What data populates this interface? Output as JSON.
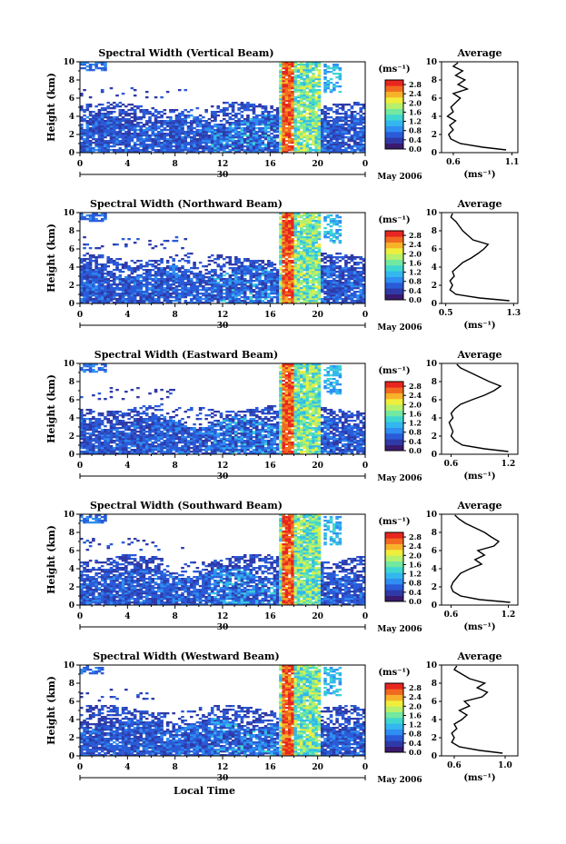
{
  "chart_data": [
    {
      "type": "heatmap",
      "title": "Spectral Width (Vertical Beam)",
      "ylabel": "Height (km)",
      "xticks": [
        "0",
        "4",
        "8",
        "12",
        "16",
        "20",
        "0"
      ],
      "yticks": [
        "0",
        "2",
        "4",
        "6",
        "8",
        "10"
      ],
      "xlim": [
        0,
        24
      ],
      "ylim": [
        0,
        10
      ],
      "date_label": "30",
      "month_label": "May 2006",
      "colorbar": {
        "unit": "(ms⁻¹)",
        "ticks": [
          "0.0",
          "0.4",
          "0.8",
          "1.2",
          "1.6",
          "2.0",
          "2.4",
          "2.8"
        ],
        "range": [
          0,
          3.0
        ]
      },
      "profile": {
        "title": "Average",
        "xlabel": "(ms⁻¹)",
        "xticks": [
          "0.6",
          "1.1"
        ],
        "xlim": [
          0.5,
          1.15
        ],
        "height": [
          0.3,
          0.6,
          1.0,
          1.5,
          2.0,
          2.5,
          3.0,
          3.5,
          4.0,
          4.5,
          5.0,
          5.5,
          6.0,
          6.5,
          7.0,
          7.5,
          8.0,
          8.5,
          9.0,
          9.5,
          9.9
        ],
        "value": [
          1.05,
          0.85,
          0.66,
          0.58,
          0.56,
          0.6,
          0.57,
          0.62,
          0.55,
          0.6,
          0.58,
          0.62,
          0.66,
          0.6,
          0.72,
          0.64,
          0.7,
          0.62,
          0.68,
          0.6,
          0.64
        ]
      }
    },
    {
      "type": "heatmap",
      "title": "Spectral Width (Northward Beam)",
      "ylabel": "Height (km)",
      "xticks": [
        "0",
        "4",
        "8",
        "12",
        "16",
        "20",
        "0"
      ],
      "yticks": [
        "0",
        "2",
        "4",
        "6",
        "8",
        "10"
      ],
      "xlim": [
        0,
        24
      ],
      "ylim": [
        0,
        10
      ],
      "date_label": "30",
      "month_label": "May 2006",
      "colorbar": {
        "unit": "(ms⁻¹)",
        "ticks": [
          "0.0",
          "0.4",
          "0.8",
          "1.2",
          "1.6",
          "2.0",
          "2.4",
          "2.8"
        ],
        "range": [
          0,
          3.0
        ]
      },
      "profile": {
        "title": "Average",
        "xlabel": "(ms⁻¹)",
        "xticks": [
          "0.5",
          "1.3"
        ],
        "xlim": [
          0.45,
          1.35
        ],
        "height": [
          0.3,
          0.6,
          1.0,
          1.5,
          2.0,
          2.5,
          3.0,
          3.5,
          4.0,
          4.5,
          5.0,
          5.5,
          6.0,
          6.5,
          7.0,
          7.5,
          8.0,
          8.5,
          9.0,
          9.5,
          9.9
        ],
        "value": [
          1.25,
          0.9,
          0.62,
          0.55,
          0.58,
          0.55,
          0.6,
          0.58,
          0.64,
          0.7,
          0.8,
          0.88,
          0.95,
          1.0,
          0.82,
          0.76,
          0.7,
          0.66,
          0.62,
          0.56,
          0.58
        ]
      }
    },
    {
      "type": "heatmap",
      "title": "Spectral Width (Eastward Beam)",
      "ylabel": "Height (km)",
      "xticks": [
        "0",
        "4",
        "8",
        "12",
        "16",
        "20",
        "0"
      ],
      "yticks": [
        "0",
        "2",
        "4",
        "6",
        "8",
        "10"
      ],
      "xlim": [
        0,
        24
      ],
      "ylim": [
        0,
        10
      ],
      "date_label": "30",
      "month_label": "May 2006",
      "colorbar": {
        "unit": "(ms⁻¹)",
        "ticks": [
          "0.0",
          "0.4",
          "0.8",
          "1.2",
          "1.6",
          "2.0",
          "2.4",
          "2.8"
        ],
        "range": [
          0,
          3.0
        ]
      },
      "profile": {
        "title": "Average",
        "xlabel": "(ms⁻¹)",
        "xticks": [
          "0.6",
          "1.2"
        ],
        "xlim": [
          0.5,
          1.3
        ],
        "height": [
          0.3,
          0.6,
          1.0,
          1.5,
          2.0,
          2.5,
          3.0,
          3.5,
          4.0,
          4.5,
          5.0,
          5.5,
          6.0,
          6.5,
          7.0,
          7.5,
          8.0,
          8.5,
          9.0,
          9.5,
          9.9
        ],
        "value": [
          1.2,
          0.95,
          0.72,
          0.64,
          0.6,
          0.62,
          0.6,
          0.58,
          0.62,
          0.6,
          0.64,
          0.7,
          0.82,
          0.95,
          1.05,
          1.12,
          1.0,
          0.9,
          0.8,
          0.7,
          0.66
        ]
      }
    },
    {
      "type": "heatmap",
      "title": "Spectral Width (Southward Beam)",
      "ylabel": "Height (km)",
      "xticks": [
        "0",
        "4",
        "8",
        "12",
        "16",
        "20",
        "0"
      ],
      "yticks": [
        "0",
        "2",
        "4",
        "6",
        "8",
        "10"
      ],
      "xlim": [
        0,
        24
      ],
      "ylim": [
        0,
        10
      ],
      "date_label": "30",
      "month_label": "May 2006",
      "colorbar": {
        "unit": "(ms⁻¹)",
        "ticks": [
          "0.0",
          "0.4",
          "0.8",
          "1.2",
          "1.6",
          "2.0",
          "2.4",
          "2.8"
        ],
        "range": [
          0,
          3.0
        ]
      },
      "profile": {
        "title": "Average",
        "xlabel": "(ms⁻¹)",
        "xticks": [
          "0.6",
          "1.2"
        ],
        "xlim": [
          0.5,
          1.3
        ],
        "height": [
          0.3,
          0.6,
          1.0,
          1.5,
          2.0,
          2.5,
          3.0,
          3.5,
          4.0,
          4.5,
          5.0,
          5.5,
          6.0,
          6.5,
          7.0,
          7.5,
          8.0,
          8.5,
          9.0,
          9.5,
          9.9
        ],
        "value": [
          1.22,
          0.9,
          0.7,
          0.62,
          0.6,
          0.62,
          0.66,
          0.7,
          0.8,
          0.92,
          0.85,
          0.95,
          0.88,
          1.05,
          1.1,
          1.02,
          0.95,
          0.85,
          0.75,
          0.68,
          0.64
        ]
      }
    },
    {
      "type": "heatmap",
      "title": "Spectral Width (Westward Beam)",
      "ylabel": "Height (km)",
      "xlabel": "Local Time",
      "xticks": [
        "0",
        "4",
        "8",
        "12",
        "16",
        "20",
        "0"
      ],
      "yticks": [
        "0",
        "2",
        "4",
        "6",
        "8",
        "10"
      ],
      "xlim": [
        0,
        24
      ],
      "ylim": [
        0,
        10
      ],
      "date_label": "30",
      "month_label": "May 2006",
      "colorbar": {
        "unit": "(ms⁻¹)",
        "ticks": [
          "0.0",
          "0.4",
          "0.8",
          "1.2",
          "1.6",
          "2.0",
          "2.4",
          "2.8"
        ],
        "range": [
          0,
          3.0
        ]
      },
      "profile": {
        "title": "Average",
        "xlabel": "(ms⁻¹)",
        "xticks": [
          "0.6",
          "1.0"
        ],
        "xlim": [
          0.5,
          1.1
        ],
        "height": [
          0.3,
          0.6,
          1.0,
          1.5,
          2.0,
          2.5,
          3.0,
          3.5,
          4.0,
          4.5,
          5.0,
          5.5,
          6.0,
          6.5,
          7.0,
          7.5,
          8.0,
          8.5,
          9.0,
          9.5,
          9.9
        ],
        "value": [
          0.98,
          0.8,
          0.64,
          0.58,
          0.6,
          0.58,
          0.62,
          0.6,
          0.66,
          0.7,
          0.64,
          0.72,
          0.68,
          0.82,
          0.86,
          0.78,
          0.84,
          0.72,
          0.66,
          0.6,
          0.62
        ]
      }
    }
  ],
  "colormap": [
    "#3a1a6e",
    "#2f3aa8",
    "#2a5bd8",
    "#2f8ef2",
    "#33b7ee",
    "#3fd7d0",
    "#73e8a0",
    "#b7f06c",
    "#f0ee3c",
    "#f7b22a",
    "#f26a1f",
    "#e8261f"
  ]
}
